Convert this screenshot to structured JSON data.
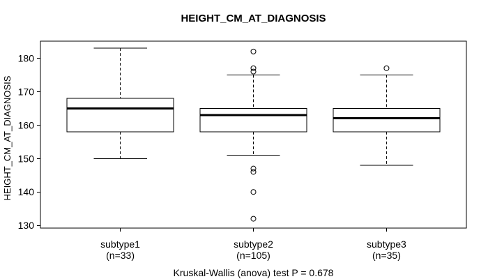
{
  "colors": {
    "line": "#000000",
    "background": "#ffffff",
    "box_fill": "#ffffff",
    "text": "#000000"
  },
  "chart_data": {
    "type": "boxplot",
    "title": "HEIGHT_CM_AT_DIAGNOSIS",
    "ylabel": "HEIGHT_CM_AT_DIAGNOSIS",
    "xlabel": "",
    "annotation": "Kruskal-Wallis (anova) test P = 0.678",
    "grid": false,
    "yticks": [
      130,
      140,
      150,
      160,
      170,
      180
    ],
    "ylim": [
      129.2,
      185.1
    ],
    "xlim": [
      0.4,
      3.6
    ],
    "box_width": 0.8,
    "whisker_cap_width": 0.4,
    "categories": [
      "subtype1",
      "subtype2",
      "subtype3"
    ],
    "series": [
      {
        "category": "subtype1",
        "n_label": "(n=33)",
        "n": 33,
        "whisker_low": 150,
        "q1": 158,
        "median": 165,
        "q3": 168,
        "whisker_high": 183,
        "outliers": []
      },
      {
        "category": "subtype2",
        "n_label": "(n=105)",
        "n": 105,
        "whisker_low": 151,
        "q1": 158,
        "median": 163,
        "q3": 165,
        "whisker_high": 175,
        "outliers": [
          182,
          177,
          176,
          147,
          146,
          140,
          132
        ]
      },
      {
        "category": "subtype3",
        "n_label": "(n=35)",
        "n": 35,
        "whisker_low": 148,
        "q1": 158,
        "median": 162,
        "q3": 165,
        "whisker_high": 175,
        "outliers": [
          177
        ]
      }
    ]
  }
}
